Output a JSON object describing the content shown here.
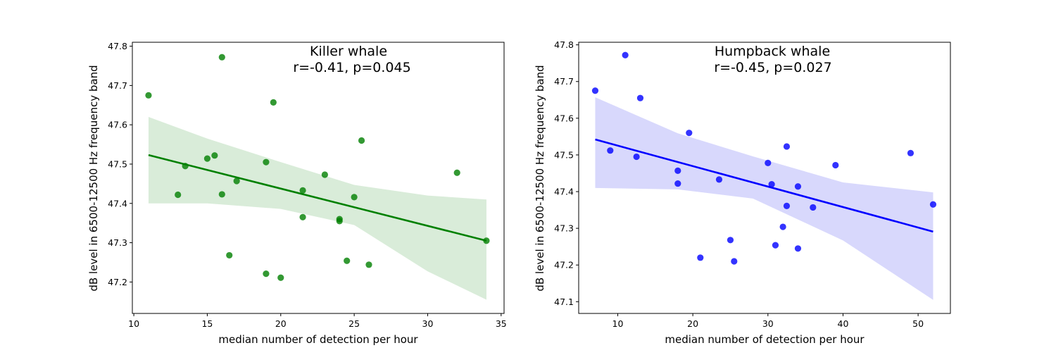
{
  "chart_data": [
    {
      "type": "scatter",
      "title": "Killer whale",
      "subtitle": "r=-0.41, p=0.045",
      "xlabel": "median number of detection per hour",
      "ylabel": "dB level in 6500-12500 Hz frequency band",
      "xlim": [
        9.9,
        35.2
      ],
      "ylim": [
        47.12,
        47.81
      ],
      "xticks": [
        10,
        15,
        20,
        25,
        30,
        35
      ],
      "yticks": [
        47.2,
        47.3,
        47.4,
        47.5,
        47.6,
        47.7,
        47.8
      ],
      "grid": false,
      "color": "#008000",
      "band_color": "#d9ecd9",
      "points": [
        [
          11,
          47.675
        ],
        [
          16,
          47.772
        ],
        [
          19.5,
          47.657
        ],
        [
          25.5,
          47.56
        ],
        [
          15.5,
          47.522
        ],
        [
          15,
          47.514
        ],
        [
          13.5,
          47.495
        ],
        [
          19,
          47.505
        ],
        [
          23,
          47.473
        ],
        [
          32,
          47.478
        ],
        [
          17,
          47.457
        ],
        [
          13,
          47.422
        ],
        [
          16,
          47.423
        ],
        [
          21.5,
          47.433
        ],
        [
          25,
          47.416
        ],
        [
          21.5,
          47.365
        ],
        [
          24,
          47.36
        ],
        [
          24,
          47.355
        ],
        [
          34,
          47.305
        ],
        [
          16.5,
          47.268
        ],
        [
          24.5,
          47.254
        ],
        [
          26,
          47.244
        ],
        [
          19,
          47.221
        ],
        [
          20,
          47.211
        ]
      ],
      "regression": {
        "x": [
          11,
          34
        ],
        "y": [
          47.523,
          47.305
        ]
      },
      "ci": {
        "x": [
          11,
          15,
          20,
          25,
          30,
          34
        ],
        "upper": [
          47.62,
          47.565,
          47.505,
          47.447,
          47.42,
          47.41
        ],
        "lower": [
          47.4,
          47.4,
          47.386,
          47.345,
          47.227,
          47.155
        ]
      }
    },
    {
      "type": "scatter",
      "title": "Humpback whale",
      "subtitle": "r=-0.45, p=0.027",
      "xlabel": "median number of detection per hour",
      "ylabel": "dB level in 6500-12500 Hz frequency band",
      "xlim": [
        4.8,
        54.3
      ],
      "ylim": [
        47.068,
        47.807
      ],
      "xticks": [
        10,
        20,
        30,
        40,
        50
      ],
      "yticks": [
        47.1,
        47.2,
        47.3,
        47.4,
        47.5,
        47.6,
        47.7,
        47.8
      ],
      "grid": false,
      "color": "#0000ff",
      "band_color": "#d8d8fc",
      "points": [
        [
          7,
          47.675
        ],
        [
          11,
          47.772
        ],
        [
          13,
          47.655
        ],
        [
          19.5,
          47.56
        ],
        [
          9,
          47.512
        ],
        [
          12.5,
          47.495
        ],
        [
          18,
          47.457
        ],
        [
          18,
          47.422
        ],
        [
          23.5,
          47.433
        ],
        [
          30,
          47.478
        ],
        [
          32.5,
          47.523
        ],
        [
          30.5,
          47.42
        ],
        [
          34,
          47.414
        ],
        [
          39,
          47.472
        ],
        [
          49,
          47.505
        ],
        [
          52,
          47.365
        ],
        [
          32.5,
          47.361
        ],
        [
          36,
          47.357
        ],
        [
          32,
          47.304
        ],
        [
          25,
          47.268
        ],
        [
          31,
          47.254
        ],
        [
          34,
          47.245
        ],
        [
          21,
          47.22
        ],
        [
          25.5,
          47.21
        ]
      ],
      "regression": {
        "x": [
          7,
          52
        ],
        "y": [
          47.542,
          47.291
        ]
      },
      "ci": {
        "x": [
          7,
          18,
          28,
          40,
          52
        ],
        "upper": [
          47.657,
          47.559,
          47.496,
          47.425,
          47.398
        ],
        "lower": [
          47.41,
          47.406,
          47.381,
          47.267,
          47.105
        ]
      }
    }
  ]
}
